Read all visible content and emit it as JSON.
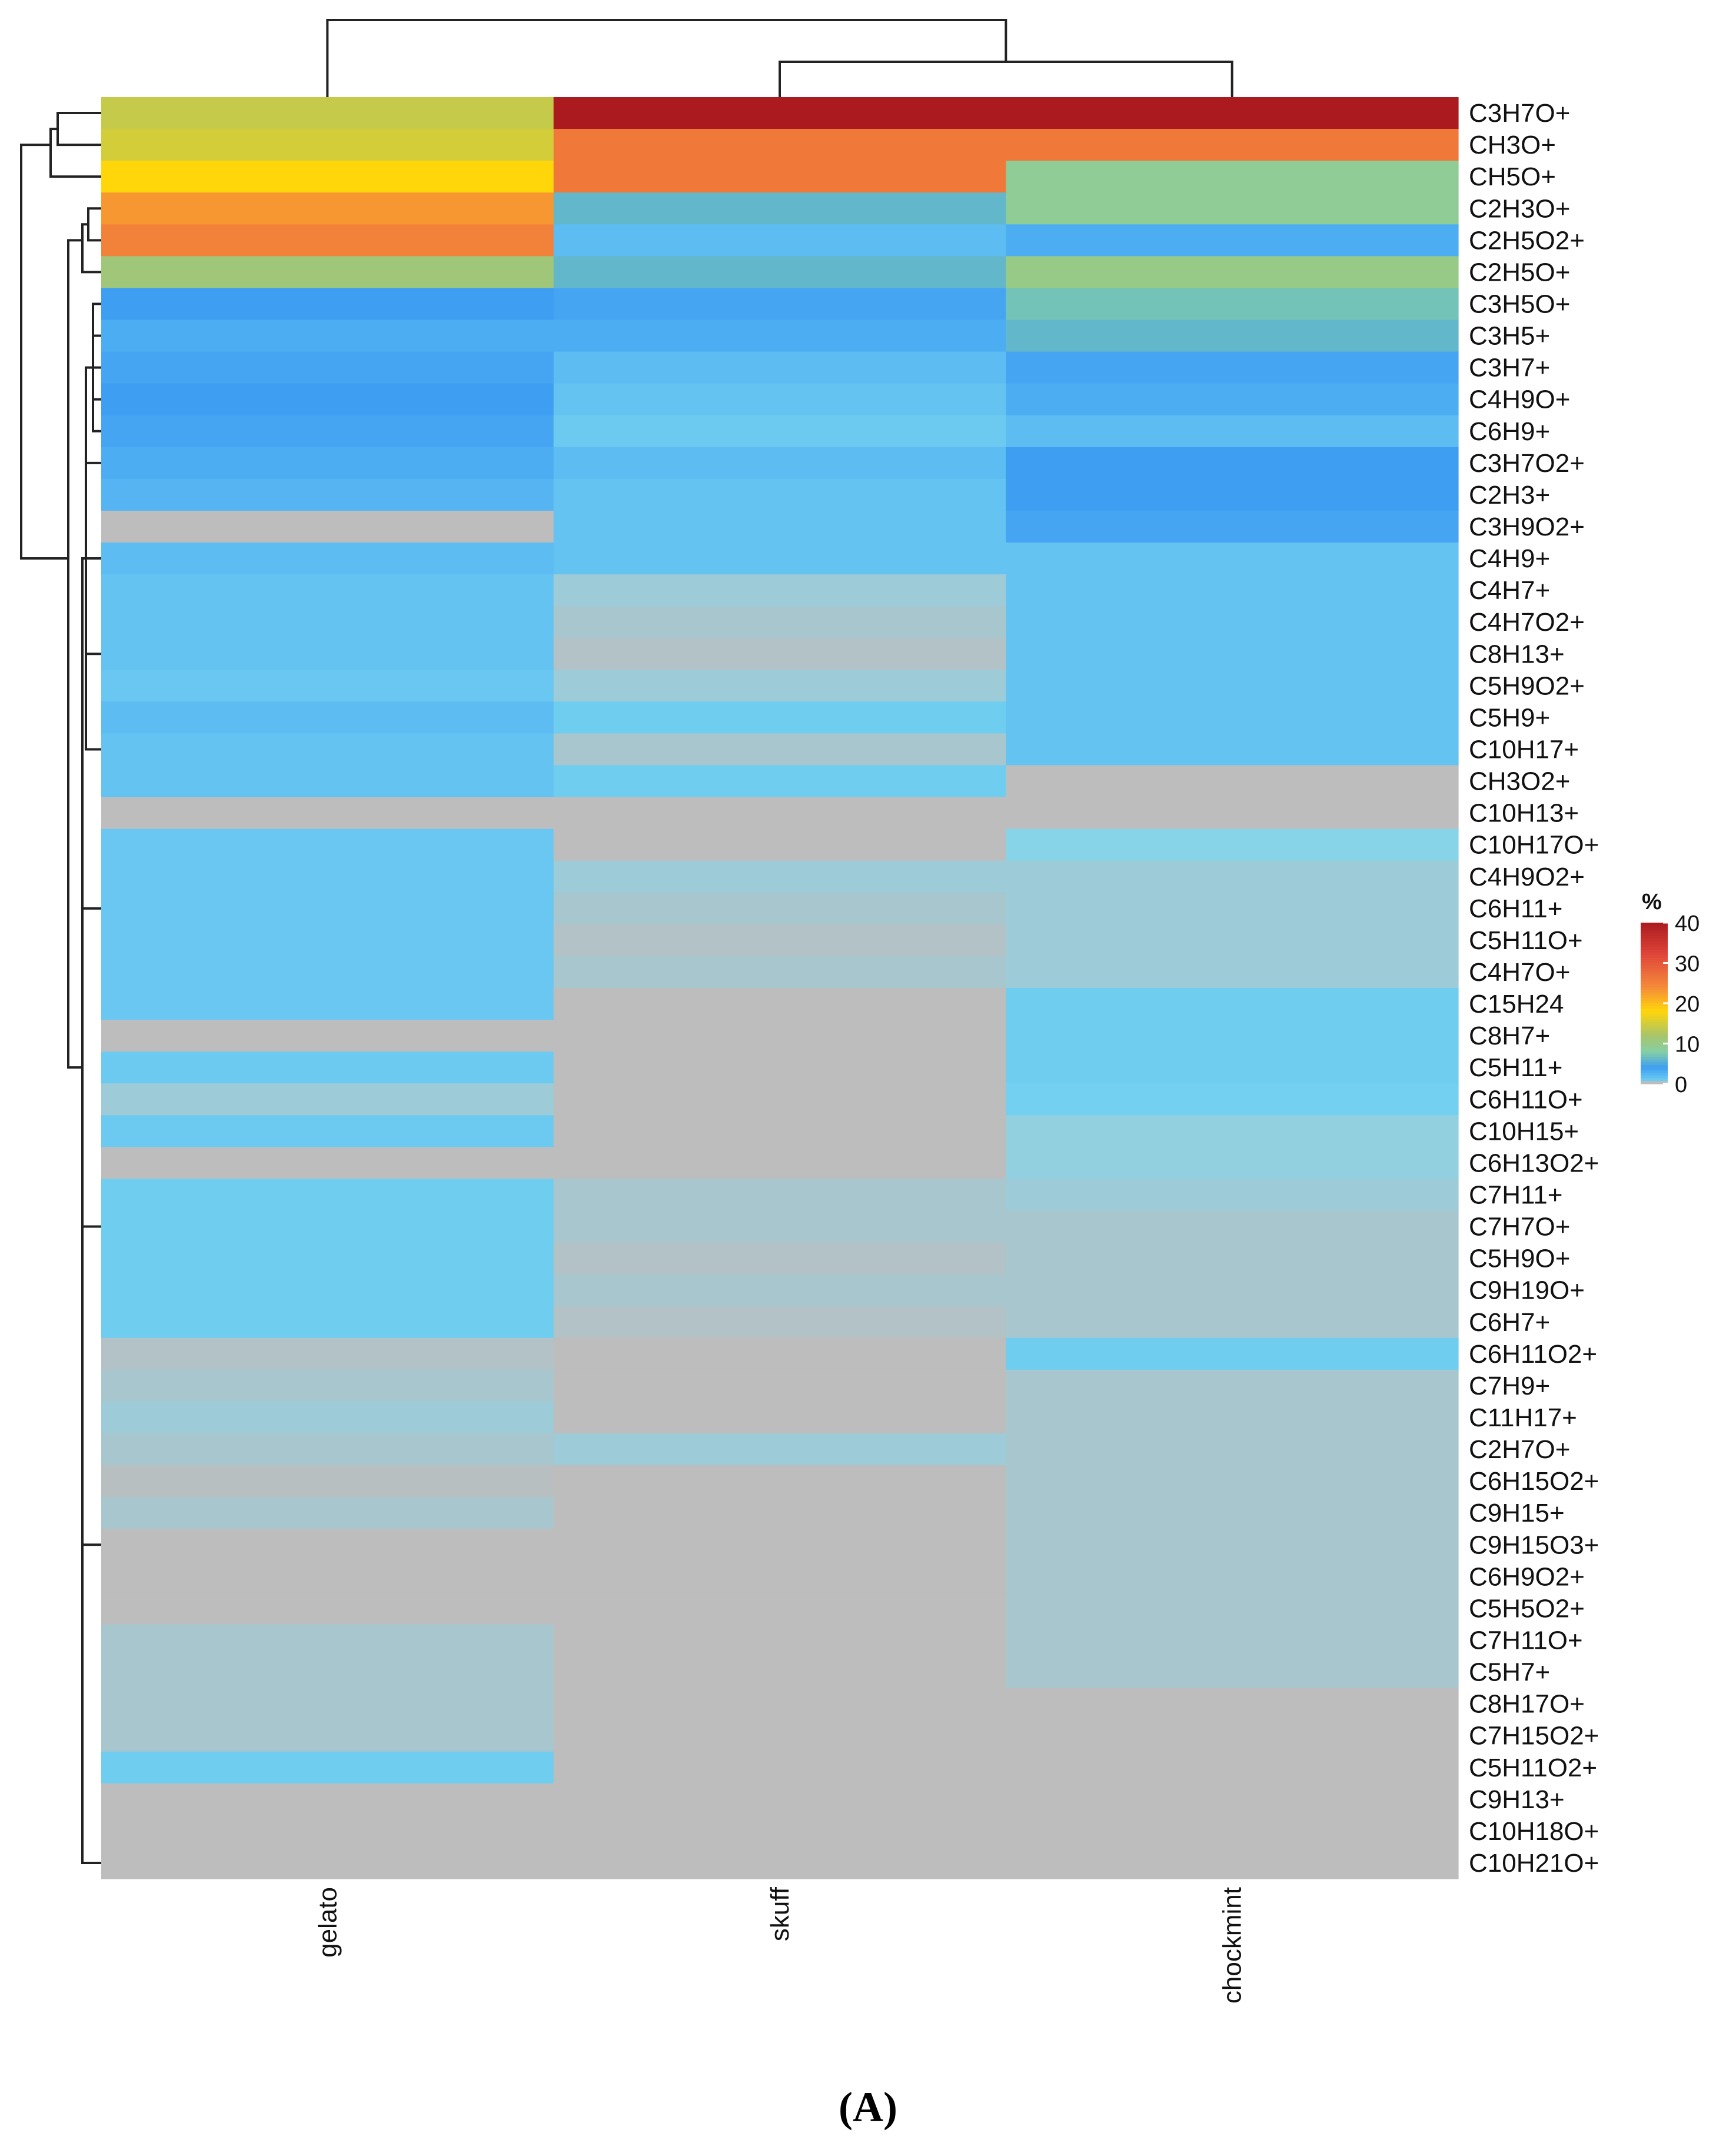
{
  "chart_data": {
    "type": "heatmap",
    "title": "",
    "caption": "(A)",
    "legend": {
      "title": "%",
      "ticks": [
        40,
        30,
        20,
        10,
        0
      ],
      "range": [
        0,
        40
      ],
      "palette": {
        "zero": "#bdbdbd",
        "0": "#7cd9f0",
        "4": "#3d9ef2",
        "8": "#86cfa4",
        "12": "#a9c46a",
        "18": "#ffd60a",
        "24": "#f58a3a",
        "32": "#e0463a",
        "40": "#aa1a1f"
      }
    },
    "columns": [
      "gelato",
      "skuff",
      "chockmint"
    ],
    "rows": [
      "C3H7O+",
      "CH3O+",
      "CH5O+",
      "C2H3O+",
      "C2H5O2+",
      "C2H5O+",
      "C3H5O+",
      "C3H5+",
      "C3H7+",
      "C4H9O+",
      "C6H9+",
      "C3H7O2+",
      "C2H3+",
      "C3H9O2+",
      "C4H9+",
      "C4H7+",
      "C4H7O2+",
      "C8H13+",
      "C5H9O2+",
      "C5H9+",
      "C10H17+",
      "CH3O2+",
      "C10H13+",
      "C10H17O+",
      "C4H9O2+",
      "C6H11+",
      "C5H11O+",
      "C4H7O+",
      "C15H24",
      "C8H7+",
      "C5H11+",
      "C6H11O+",
      "C10H15+",
      "C6H13O2+",
      "C7H11+",
      "C7H7O+",
      "C5H9O+",
      "C9H19O+",
      "C6H7+",
      "C6H11O2+",
      "C7H9+",
      "C11H17+",
      "C2H7O+",
      "C6H15O2+",
      "C9H15+",
      "C9H15O3+",
      "C6H9O2+",
      "C5H5O2+",
      "C7H11O+",
      "C5H7+",
      "C8H17O+",
      "C7H15O2+",
      "C5H11O2+",
      "C9H13+",
      "C10H18O+",
      "C10H21O+"
    ],
    "values": [
      [
        14,
        40,
        40
      ],
      [
        15,
        26,
        26
      ],
      [
        18,
        26,
        9
      ],
      [
        23,
        6,
        9
      ],
      [
        25,
        2,
        3
      ],
      [
        11,
        6,
        10
      ],
      [
        4,
        3.5,
        7
      ],
      [
        3,
        3,
        6
      ],
      [
        3.5,
        2,
        3.5
      ],
      [
        4,
        1.5,
        3
      ],
      [
        3.5,
        1,
        2
      ],
      [
        3,
        2,
        4
      ],
      [
        2.5,
        1.5,
        4
      ],
      [
        0,
        1.5,
        3.5
      ],
      [
        2,
        1.5,
        1.5
      ],
      [
        1.5,
        0.3,
        1.5
      ],
      [
        1.5,
        0.2,
        1.5
      ],
      [
        1.5,
        0.1,
        1.5
      ],
      [
        1.2,
        0.3,
        1.5
      ],
      [
        2,
        0.8,
        1.5
      ],
      [
        1.5,
        0.2,
        1.5
      ],
      [
        1.5,
        0.8,
        0
      ],
      [
        0,
        0,
        0
      ],
      [
        1.2,
        0,
        0.5
      ],
      [
        1.2,
        0.3,
        0.3
      ],
      [
        1.2,
        0.2,
        0.3
      ],
      [
        1.2,
        0.1,
        0.3
      ],
      [
        1.2,
        0.2,
        0.3
      ],
      [
        1.2,
        0,
        0.8
      ],
      [
        0,
        0,
        0.8
      ],
      [
        1,
        0,
        0.8
      ],
      [
        0.3,
        0,
        0.6
      ],
      [
        1,
        0,
        0.4
      ],
      [
        0,
        0,
        0.4
      ],
      [
        0.8,
        0.2,
        0.3
      ],
      [
        0.8,
        0.2,
        0.2
      ],
      [
        0.8,
        0.1,
        0.2
      ],
      [
        0.8,
        0.2,
        0.2
      ],
      [
        0.8,
        0.1,
        0.2
      ],
      [
        0.1,
        0,
        0.8
      ],
      [
        0.2,
        0,
        0.2
      ],
      [
        0.3,
        0,
        0.2
      ],
      [
        0.2,
        0.3,
        0.2
      ],
      [
        0.05,
        0,
        0.2
      ],
      [
        0.2,
        0,
        0.2
      ],
      [
        0,
        0,
        0.2
      ],
      [
        0,
        0,
        0.2
      ],
      [
        0,
        0,
        0.2
      ],
      [
        0.2,
        0,
        0.2
      ],
      [
        0.2,
        0,
        0.2
      ],
      [
        0.2,
        0,
        0
      ],
      [
        0.2,
        0,
        0
      ],
      [
        0.8,
        0,
        0
      ],
      [
        0,
        0,
        0
      ],
      [
        0,
        0,
        0
      ],
      [
        0,
        0,
        0
      ]
    ],
    "column_dendrogram": "((gelato),(skuff,chockmint))",
    "row_dendrogram": "hierarchical clustering of rows (top clusters: [C3H7O+,CH3O+,CH5O+], [C2H3O+,C2H5O2+], [C2H5O+], rest)"
  }
}
